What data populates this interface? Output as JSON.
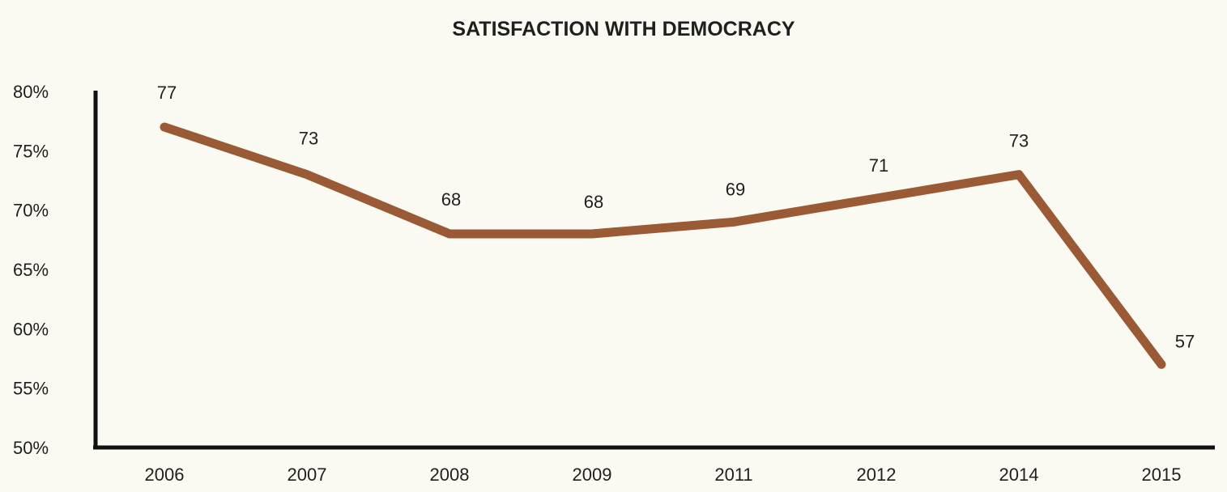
{
  "chart_data": {
    "type": "line",
    "title": "SATISFACTION WITH DEMOCRACY",
    "xlabel": "",
    "ylabel": "",
    "categories": [
      "2006",
      "2007",
      "2008",
      "2009",
      "2011",
      "2012",
      "2014",
      "2015"
    ],
    "series": [
      {
        "values": [
          77,
          73,
          68,
          68,
          69,
          71,
          73,
          57
        ],
        "data_labels": [
          "77",
          "73",
          "68",
          "68",
          "69",
          "71",
          "73",
          "57"
        ],
        "color": "#9a5a35"
      }
    ],
    "yticks": [
      50,
      55,
      60,
      65,
      70,
      75,
      80
    ],
    "ytick_labels": [
      "50%",
      "55%",
      "60%",
      "65%",
      "70%",
      "75%",
      "80%"
    ],
    "ylim": [
      50,
      80
    ],
    "grid": false,
    "legend": "none"
  },
  "colors": {
    "background": "#fbfaf2",
    "axis": "#111111",
    "line": "#9a5a35",
    "text": "#1f1f1f"
  }
}
